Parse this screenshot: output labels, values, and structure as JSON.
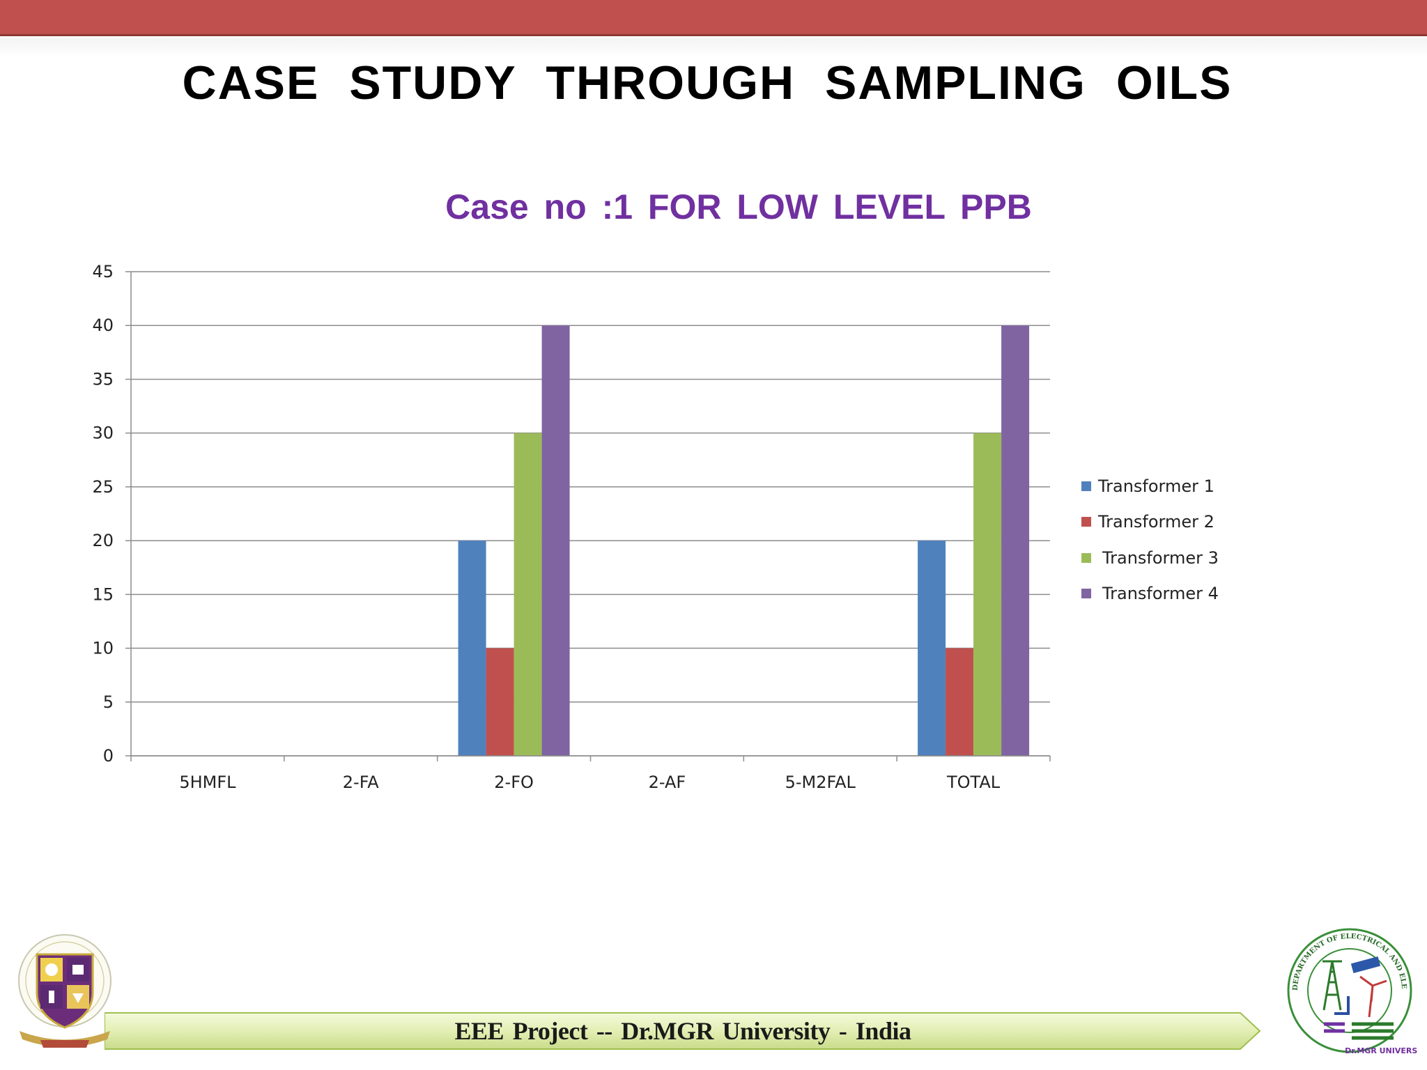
{
  "slide": {
    "title": "CASE STUDY THROUGH SAMPLING OILS",
    "footer": "EEE Project -- Dr.MGR University - India"
  },
  "colors": {
    "top_bar": "#c0504d",
    "chart_title": "#7030a0",
    "footer_band": "#eaf2c6"
  },
  "logos": {
    "left": "university-seal-logo",
    "right": "department-eee-logo",
    "right_text": "DEPARTMENT OF ELECTRICAL AND ELECTRONICS ENGINEERING",
    "right_sub": "Dr.MGR UNIVERSITY"
  },
  "chart_data": {
    "type": "bar",
    "title": "Case no :1  FOR LOW  LEVEL PPB",
    "xlabel": "",
    "ylabel": "",
    "categories": [
      "5HMFL",
      "2-FA",
      "2-FO",
      "2-AF",
      "5-M2FAL",
      "TOTAL"
    ],
    "ylim": [
      0,
      45
    ],
    "ytick_step": 5,
    "grid": true,
    "legend_position": "right",
    "series": [
      {
        "name": "Transformer 1",
        "color": "#4f81bd",
        "values": [
          0,
          0,
          20,
          0,
          0,
          20
        ]
      },
      {
        "name": "Transformer 2",
        "color": "#c0504d",
        "values": [
          0,
          0,
          10,
          0,
          0,
          10
        ]
      },
      {
        "name": "Transformer 3",
        "color": "#9bbb59",
        "values": [
          0,
          0,
          30,
          0,
          0,
          30
        ]
      },
      {
        "name": "Transformer 4",
        "color": "#8064a2",
        "values": [
          0,
          0,
          40,
          0,
          0,
          40
        ]
      }
    ]
  }
}
